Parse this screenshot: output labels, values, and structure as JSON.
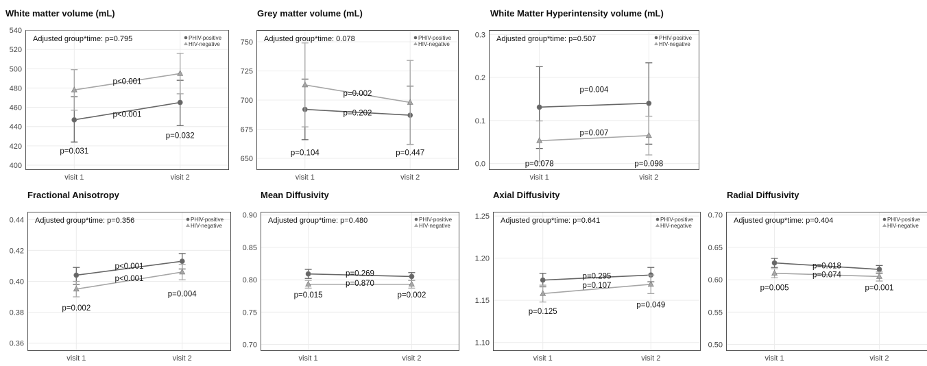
{
  "figure": {
    "series_colors": {
      "PHIV-positive": "#666666",
      "HIV-negative": "#a6a6a6"
    },
    "marker_names": {
      "PHIV-positive": "circle",
      "HIV-negative": "triangle"
    }
  },
  "chart_data": [
    {
      "type": "line",
      "title": "White matter volume (mL)",
      "annotation": "Adjusted group*time: p=0.795",
      "categories": [
        "visit 1",
        "visit 2"
      ],
      "ylim": [
        395,
        540
      ],
      "yticks": [
        "400",
        "420",
        "440",
        "460",
        "480",
        "500",
        "520",
        "540"
      ],
      "legend": [
        "PHIV-positive",
        "HIV-negative"
      ],
      "series": [
        {
          "name": "PHIV-positive",
          "values": [
            447,
            465
          ],
          "lower": [
            424,
            441
          ],
          "upper": [
            471,
            488
          ]
        },
        {
          "name": "HIV-negative",
          "values": [
            478,
            495
          ],
          "lower": [
            457,
            474
          ],
          "upper": [
            499,
            516
          ]
        }
      ],
      "labels": [
        {
          "text": "p<0.001",
          "x": 1.5,
          "y": 487
        },
        {
          "text": "p<0.001",
          "x": 1.5,
          "y": 453
        },
        {
          "text": "p=0.031",
          "x": 1,
          "y": 415
        },
        {
          "text": "p=0.032",
          "x": 2,
          "y": 431
        }
      ]
    },
    {
      "type": "line",
      "title": "Grey matter volume (mL)",
      "annotation": "Adjusted group*time: 0.078",
      "categories": [
        "visit 1",
        "visit 2"
      ],
      "ylim": [
        640,
        760
      ],
      "yticks": [
        "650",
        "675",
        "700",
        "725",
        "750"
      ],
      "legend": [
        "PHIV-positive",
        "HIV-negative"
      ],
      "series": [
        {
          "name": "PHIV-positive",
          "values": [
            692,
            687
          ],
          "lower": [
            666,
            662
          ],
          "upper": [
            718,
            712
          ]
        },
        {
          "name": "HIV-negative",
          "values": [
            713,
            698
          ],
          "lower": [
            677,
            662
          ],
          "upper": [
            749,
            734
          ]
        }
      ],
      "labels": [
        {
          "text": "p=0.002",
          "x": 1.5,
          "y": 706
        },
        {
          "text": "p=0.202",
          "x": 1.5,
          "y": 689
        },
        {
          "text": "p=0.104",
          "x": 1,
          "y": 655
        },
        {
          "text": "p=0.447",
          "x": 2,
          "y": 655
        }
      ]
    },
    {
      "type": "line",
      "title": "White Matter Hyperintensity volume (mL)",
      "annotation": "Adjusted group*time: p=0.507",
      "categories": [
        "visit 1",
        "visit 2"
      ],
      "ylim": [
        -0.015,
        0.31
      ],
      "yticks": [
        "0.0",
        "0.1",
        "0.2",
        "0.3"
      ],
      "legend": [
        "PHIV-positive",
        "HIV-negative"
      ],
      "series": [
        {
          "name": "PHIV-positive",
          "values": [
            0.131,
            0.14
          ],
          "lower": [
            0.035,
            0.045
          ],
          "upper": [
            0.225,
            0.234
          ]
        },
        {
          "name": "HIV-negative",
          "values": [
            0.053,
            0.065
          ],
          "lower": [
            0.004,
            0.02
          ],
          "upper": [
            0.099,
            0.11
          ]
        }
      ],
      "labels": [
        {
          "text": "p=0.004",
          "x": 1.5,
          "y": 0.172
        },
        {
          "text": "p=0.007",
          "x": 1.5,
          "y": 0.072
        },
        {
          "text": "p=0.078",
          "x": 1,
          "y": 0.0
        },
        {
          "text": "p=0.098",
          "x": 2,
          "y": 0.0
        }
      ]
    },
    {
      "type": "line",
      "title": "Fractional Anisotropy",
      "annotation": "Adjusted group*time: p=0.356",
      "categories": [
        "visit 1",
        "visit 2"
      ],
      "ylim": [
        0.355,
        0.445
      ],
      "yticks": [
        "0.36",
        "0.38",
        "0.40",
        "0.42",
        "0.44"
      ],
      "legend": [
        "PHIV-positive",
        "HIV-negative"
      ],
      "series": [
        {
          "name": "PHIV-positive",
          "values": [
            0.404,
            0.413
          ],
          "lower": [
            0.398,
            0.408
          ],
          "upper": [
            0.409,
            0.418
          ]
        },
        {
          "name": "HIV-negative",
          "values": [
            0.395,
            0.406
          ],
          "lower": [
            0.39,
            0.401
          ],
          "upper": [
            0.4,
            0.411
          ]
        }
      ],
      "labels": [
        {
          "text": "p<0.001",
          "x": 1.5,
          "y": 0.41
        },
        {
          "text": "p<0.001",
          "x": 1.5,
          "y": 0.402
        },
        {
          "text": "p=0.002",
          "x": 1,
          "y": 0.383
        },
        {
          "text": "p=0.004",
          "x": 2,
          "y": 0.392
        }
      ]
    },
    {
      "type": "line",
      "title": "Mean Diffusivity",
      "annotation": "Adjusted group*time: p=0.480",
      "categories": [
        "visit 1",
        "visit 2"
      ],
      "ylim": [
        0.69,
        0.905
      ],
      "yticks": [
        "0.70",
        "0.75",
        "0.80",
        "0.85",
        "0.90"
      ],
      "legend": [
        "PHIV-positive",
        "HIV-negative"
      ],
      "series": [
        {
          "name": "PHIV-positive",
          "values": [
            0.809,
            0.805
          ],
          "lower": [
            0.802,
            0.799
          ],
          "upper": [
            0.816,
            0.811
          ]
        },
        {
          "name": "HIV-negative",
          "values": [
            0.793,
            0.793
          ],
          "lower": [
            0.787,
            0.787
          ],
          "upper": [
            0.799,
            0.799
          ]
        }
      ],
      "labels": [
        {
          "text": "p=0.269",
          "x": 1.5,
          "y": 0.81
        },
        {
          "text": "p=0.870",
          "x": 1.5,
          "y": 0.795
        },
        {
          "text": "p=0.015",
          "x": 1,
          "y": 0.777
        },
        {
          "text": "p=0.002",
          "x": 2,
          "y": 0.777
        }
      ]
    },
    {
      "type": "line",
      "title": "Axial Diffusivity",
      "annotation": "Adjusted group*time: p=0.641",
      "categories": [
        "visit 1",
        "visit 2"
      ],
      "ylim": [
        1.09,
        1.255
      ],
      "yticks": [
        "1.10",
        "1.15",
        "1.20",
        "1.25"
      ],
      "legend": [
        "PHIV-positive",
        "HIV-negative"
      ],
      "series": [
        {
          "name": "PHIV-positive",
          "values": [
            1.174,
            1.18
          ],
          "lower": [
            1.166,
            1.172
          ],
          "upper": [
            1.182,
            1.189
          ]
        },
        {
          "name": "HIV-negative",
          "values": [
            1.158,
            1.169
          ],
          "lower": [
            1.148,
            1.158
          ],
          "upper": [
            1.168,
            1.18
          ]
        }
      ],
      "labels": [
        {
          "text": "p=0.295",
          "x": 1.5,
          "y": 1.179
        },
        {
          "text": "p=0.107",
          "x": 1.5,
          "y": 1.168
        },
        {
          "text": "p=0.125",
          "x": 1,
          "y": 1.137
        },
        {
          "text": "p=0.049",
          "x": 2,
          "y": 1.145
        }
      ]
    },
    {
      "type": "line",
      "title": "Radial Diffusivity",
      "annotation": "Adjusted group*time: p=0.404",
      "categories": [
        "visit 1",
        "visit 2"
      ],
      "ylim": [
        0.49,
        0.705
      ],
      "yticks": [
        "0.50",
        "0.55",
        "0.60",
        "0.65",
        "0.70"
      ],
      "legend": [
        "PHIV-positive",
        "HIV-negative"
      ],
      "series": [
        {
          "name": "PHIV-positive",
          "values": [
            0.626,
            0.616
          ],
          "lower": [
            0.619,
            0.61
          ],
          "upper": [
            0.633,
            0.622
          ]
        },
        {
          "name": "HIV-negative",
          "values": [
            0.61,
            0.605
          ],
          "lower": [
            0.603,
            0.598
          ],
          "upper": [
            0.617,
            0.612
          ]
        }
      ],
      "labels": [
        {
          "text": "p=0.018",
          "x": 1.5,
          "y": 0.622
        },
        {
          "text": "p=0.074",
          "x": 1.5,
          "y": 0.608
        },
        {
          "text": "p=0.005",
          "x": 1,
          "y": 0.588
        },
        {
          "text": "p=0.001",
          "x": 2,
          "y": 0.588
        }
      ]
    }
  ]
}
